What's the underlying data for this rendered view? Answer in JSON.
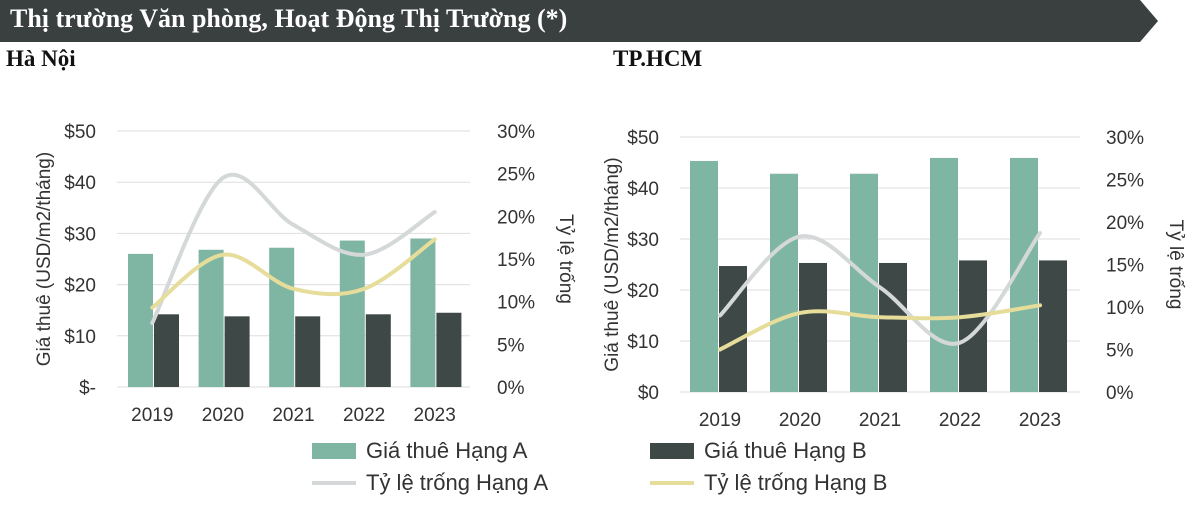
{
  "header": {
    "title": "Thị trường Văn phòng, Hoạt Động Thị Trường (*)",
    "bg_color": "#3a3f3f"
  },
  "subtitles": {
    "left": "Hà Nội",
    "right": "TP.HCM"
  },
  "legend": {
    "items": [
      {
        "label": "Giá thuê Hạng A",
        "kind": "bar",
        "color": "#7fb5a3"
      },
      {
        "label": "Giá thuê Hạng B",
        "kind": "bar",
        "color": "#3e4847"
      },
      {
        "label": "Tỷ lệ trống Hạng A",
        "kind": "line",
        "color": "#d4d8d8"
      },
      {
        "label": "Tỷ lệ trống Hạng B",
        "kind": "line",
        "color": "#e6dd9a"
      }
    ]
  },
  "chart_data": [
    {
      "type": "bar",
      "title": "Hà Nội",
      "categories": [
        "2019",
        "2020",
        "2021",
        "2022",
        "2023"
      ],
      "ylabel": "Giá thuê (USD/m2/tháng)",
      "y2label": "Tỷ lệ trống",
      "ylim": [
        0,
        50
      ],
      "y2lim": [
        0,
        30
      ],
      "y_ticks": [
        "$-",
        "$10",
        "$20",
        "$30",
        "$40",
        "$50"
      ],
      "y2_ticks": [
        "0%",
        "5%",
        "10%",
        "15%",
        "20%",
        "25%",
        "30%"
      ],
      "grid": true,
      "series": [
        {
          "name": "Giá thuê Hạng A",
          "kind": "bar",
          "axis": "left",
          "color": "#7fb5a3",
          "values": [
            26,
            26.8,
            27.2,
            28.6,
            29
          ]
        },
        {
          "name": "Giá thuê Hạng B",
          "kind": "bar",
          "axis": "left",
          "color": "#3e4847",
          "values": [
            14.2,
            13.8,
            13.8,
            14.2,
            14.5
          ]
        },
        {
          "name": "Tỷ lệ trống Hạng A",
          "kind": "line",
          "axis": "right",
          "color": "#d4d8d8",
          "values": [
            7.5,
            24.5,
            19,
            15.5,
            20.5
          ]
        },
        {
          "name": "Tỷ lệ trống Hạng B",
          "kind": "line",
          "axis": "right",
          "color": "#e6dd9a",
          "values": [
            9.3,
            15.5,
            11.5,
            11.5,
            17.3
          ]
        }
      ]
    },
    {
      "type": "bar",
      "title": "TP.HCM",
      "categories": [
        "2019",
        "2020",
        "2021",
        "2022",
        "2023"
      ],
      "ylabel": "Giá thuê (USD/m2/tháng)",
      "y2label": "Tỷ lệ trống",
      "ylim": [
        0,
        50
      ],
      "y2lim": [
        0,
        30
      ],
      "y_ticks": [
        "$0",
        "$10",
        "$20",
        "$30",
        "$40",
        "$50"
      ],
      "y2_ticks": [
        "0%",
        "5%",
        "10%",
        "15%",
        "20%",
        "25%",
        "30%"
      ],
      "grid": true,
      "series": [
        {
          "name": "Giá thuê Hạng A",
          "kind": "bar",
          "axis": "left",
          "color": "#7fb5a3",
          "values": [
            45.3,
            42.8,
            42.8,
            45.9,
            45.9
          ]
        },
        {
          "name": "Giá thuê Hạng B",
          "kind": "bar",
          "axis": "left",
          "color": "#3e4847",
          "values": [
            24.7,
            25.3,
            25.3,
            25.8,
            25.8
          ]
        },
        {
          "name": "Tỷ lệ trống Hạng A",
          "kind": "line",
          "axis": "right",
          "color": "#d4d8d8",
          "values": [
            9,
            18.3,
            12.3,
            5.8,
            18.7
          ]
        },
        {
          "name": "Tỷ lệ trống Hạng B",
          "kind": "line",
          "axis": "right",
          "color": "#e6dd9a",
          "values": [
            5,
            9.3,
            8.8,
            8.8,
            10.2
          ]
        }
      ]
    }
  ]
}
